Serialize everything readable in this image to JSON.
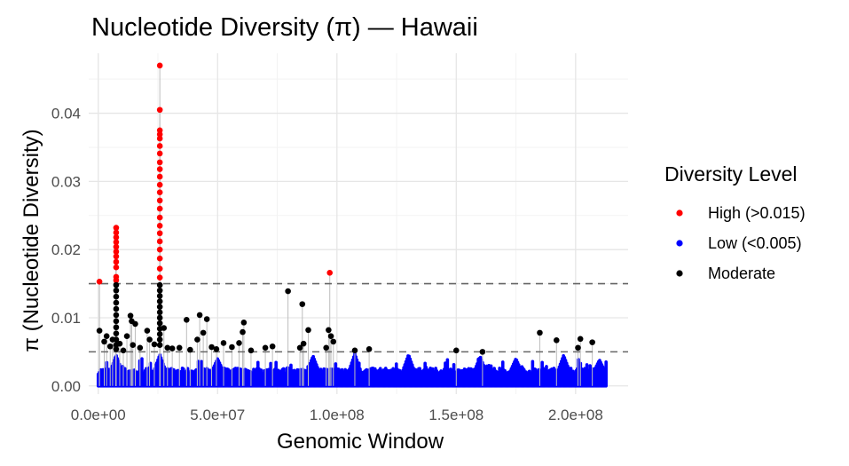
{
  "chart_data": {
    "type": "scatter",
    "title": "Nucleotide Diversity (π) — Hawaii",
    "xlabel": "Genomic Window",
    "ylabel": "π (Nucleotide Diversity)",
    "xlim": [
      -4000000,
      222000000
    ],
    "ylim": [
      -0.0012,
      0.0488
    ],
    "x_ticks": [
      {
        "value": 0,
        "label": "0.0e+00"
      },
      {
        "value": 50000000,
        "label": "5.0e+07"
      },
      {
        "value": 100000000,
        "label": "1.0e+08"
      },
      {
        "value": 150000000,
        "label": "1.5e+08"
      },
      {
        "value": 200000000,
        "label": "2.0e+08"
      }
    ],
    "y_ticks": [
      {
        "value": 0,
        "label": "0.00"
      },
      {
        "value": 0.01,
        "label": "0.01"
      },
      {
        "value": 0.02,
        "label": "0.02"
      },
      {
        "value": 0.03,
        "label": "0.03"
      },
      {
        "value": 0.04,
        "label": "0.04"
      }
    ],
    "thresholds": [
      0.015,
      0.005
    ],
    "grid": true,
    "legend": {
      "title": "Diversity Level",
      "position": "right",
      "entries": [
        {
          "label": "High (>0.015)",
          "color": "#ff0000"
        },
        {
          "label": "Low (<0.005)",
          "color": "#0000ff"
        },
        {
          "label": "Moderate",
          "color": "#000000"
        }
      ]
    },
    "colors": {
      "High (>0.015)": "#ff0000",
      "Low (<0.005)": "#0000ff",
      "Moderate": "#000000"
    },
    "series": [
      {
        "name": "High (>0.015)",
        "points": [
          [
            500000,
            0.0153
          ],
          [
            7500000,
            0.0232
          ],
          [
            7500000,
            0.0225
          ],
          [
            7500000,
            0.0218
          ],
          [
            7500000,
            0.0211
          ],
          [
            7500000,
            0.0204
          ],
          [
            7500000,
            0.0197
          ],
          [
            7500000,
            0.019
          ],
          [
            7500000,
            0.0182
          ],
          [
            7500000,
            0.0174
          ],
          [
            7500000,
            0.016
          ],
          [
            7500000,
            0.0155
          ],
          [
            25800000,
            0.047
          ],
          [
            25800000,
            0.0405
          ],
          [
            25800000,
            0.0375
          ],
          [
            25800000,
            0.0369
          ],
          [
            25800000,
            0.0363
          ],
          [
            25800000,
            0.0352
          ],
          [
            25800000,
            0.0341
          ],
          [
            25800000,
            0.0328
          ],
          [
            25800000,
            0.0318
          ],
          [
            25800000,
            0.0307
          ],
          [
            25800000,
            0.0295
          ],
          [
            25800000,
            0.0284
          ],
          [
            25800000,
            0.0272
          ],
          [
            25800000,
            0.026
          ],
          [
            25800000,
            0.0247
          ],
          [
            25800000,
            0.0235
          ],
          [
            25800000,
            0.0224
          ],
          [
            25800000,
            0.0212
          ],
          [
            25800000,
            0.02
          ],
          [
            25800000,
            0.0187
          ],
          [
            25800000,
            0.0172
          ],
          [
            25800000,
            0.0159
          ],
          [
            97000000,
            0.0166
          ]
        ]
      },
      {
        "name": "Moderate",
        "points": [
          [
            500000,
            0.0081
          ],
          [
            2500000,
            0.0065
          ],
          [
            3500000,
            0.0073
          ],
          [
            5000000,
            0.0058
          ],
          [
            6000000,
            0.0068
          ],
          [
            7500000,
            0.0148
          ],
          [
            7500000,
            0.014
          ],
          [
            7500000,
            0.0131
          ],
          [
            7500000,
            0.0122
          ],
          [
            7500000,
            0.0113
          ],
          [
            7500000,
            0.0104
          ],
          [
            7500000,
            0.0095
          ],
          [
            7500000,
            0.0086
          ],
          [
            7500000,
            0.0077
          ],
          [
            7500000,
            0.0068
          ],
          [
            7500000,
            0.006
          ],
          [
            7500000,
            0.0054
          ],
          [
            9000000,
            0.0062
          ],
          [
            10500000,
            0.0052
          ],
          [
            12000000,
            0.0073
          ],
          [
            13500000,
            0.0103
          ],
          [
            14000000,
            0.0095
          ],
          [
            14500000,
            0.006
          ],
          [
            15500000,
            0.0091
          ],
          [
            17500000,
            0.0056
          ],
          [
            20500000,
            0.0081
          ],
          [
            21500000,
            0.0068
          ],
          [
            23500000,
            0.0061
          ],
          [
            25800000,
            0.0148
          ],
          [
            25800000,
            0.014
          ],
          [
            25800000,
            0.0132
          ],
          [
            25800000,
            0.0124
          ],
          [
            25800000,
            0.0116
          ],
          [
            25800000,
            0.0108
          ],
          [
            25800000,
            0.01
          ],
          [
            25800000,
            0.0092
          ],
          [
            25800000,
            0.0084
          ],
          [
            25800000,
            0.0076
          ],
          [
            25800000,
            0.0068
          ],
          [
            25800000,
            0.006
          ],
          [
            27500000,
            0.0085
          ],
          [
            29000000,
            0.0056
          ],
          [
            31000000,
            0.0055
          ],
          [
            34000000,
            0.0056
          ],
          [
            37000000,
            0.0097
          ],
          [
            38500000,
            0.0053
          ],
          [
            41500000,
            0.0068
          ],
          [
            42500000,
            0.0104
          ],
          [
            44000000,
            0.0078
          ],
          [
            45500000,
            0.0098
          ],
          [
            47500000,
            0.0057
          ],
          [
            49500000,
            0.0054
          ],
          [
            52500000,
            0.0063
          ],
          [
            56000000,
            0.0057
          ],
          [
            59000000,
            0.0063
          ],
          [
            60500000,
            0.0079
          ],
          [
            61000000,
            0.0093
          ],
          [
            64000000,
            0.0052
          ],
          [
            70000000,
            0.0056
          ],
          [
            73000000,
            0.0058
          ],
          [
            79500000,
            0.0139
          ],
          [
            84500000,
            0.0056
          ],
          [
            85500000,
            0.012
          ],
          [
            86000000,
            0.0062
          ],
          [
            88000000,
            0.0082
          ],
          [
            95500000,
            0.0056
          ],
          [
            96500000,
            0.0082
          ],
          [
            97500000,
            0.0073
          ],
          [
            98500000,
            0.0065
          ],
          [
            107500000,
            0.0052
          ],
          [
            113500000,
            0.0054
          ],
          [
            150000000,
            0.0052
          ],
          [
            161000000,
            0.005
          ],
          [
            185000000,
            0.0078
          ],
          [
            192000000,
            0.0067
          ],
          [
            201000000,
            0.0056
          ],
          [
            202000000,
            0.0069
          ],
          [
            207000000,
            0.0064
          ]
        ]
      }
    ],
    "low_band": {
      "name": "Low (<0.005)",
      "x_range": [
        0,
        213000000
      ],
      "y_range": [
        0,
        0.005
      ],
      "typical": 0.0017,
      "bumps": [
        [
          7500000,
          0.0045
        ],
        [
          25800000,
          0.0046
        ],
        [
          50000000,
          0.004
        ],
        [
          90000000,
          0.0044
        ],
        [
          107500000,
          0.0047
        ],
        [
          130000000,
          0.0046
        ],
        [
          160000000,
          0.0043
        ],
        [
          175000000,
          0.004
        ],
        [
          195000000,
          0.0045
        ],
        [
          210000000,
          0.0038
        ]
      ]
    }
  }
}
